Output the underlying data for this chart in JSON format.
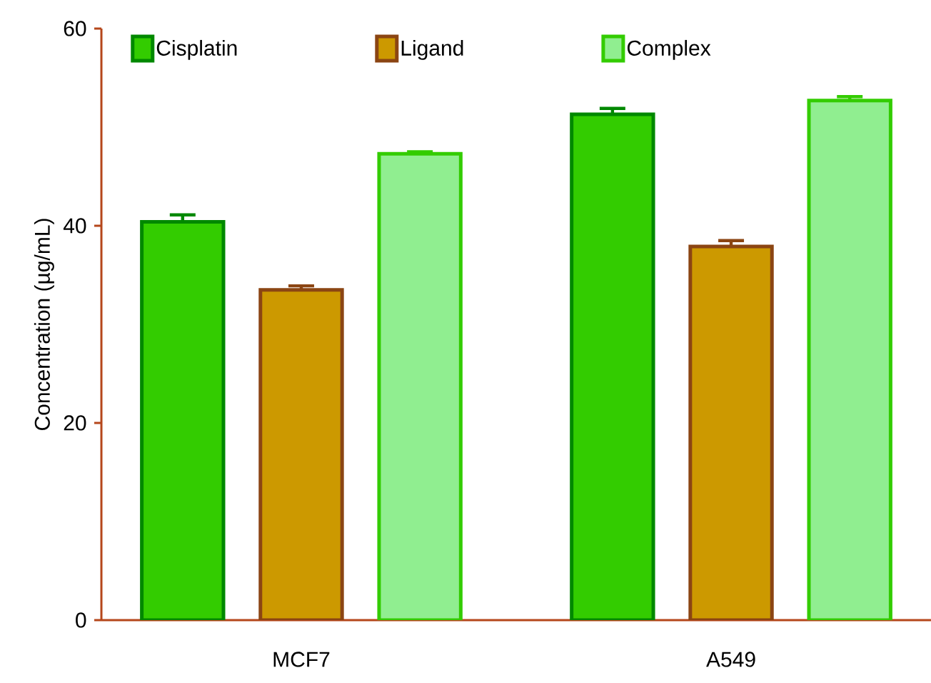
{
  "chart_data": {
    "type": "bar",
    "ylabel": "Concentration (µg/mL)",
    "categories": [
      "MCF7",
      "A549"
    ],
    "series": [
      {
        "name": "Cisplatin",
        "color": "#33cc00",
        "values": [
          40.4,
          51.3
        ],
        "errors": [
          0.7,
          0.6
        ]
      },
      {
        "name": "Ligand",
        "color": "#cc9900",
        "values": [
          33.5,
          37.9
        ],
        "errors": [
          0.4,
          0.6
        ]
      },
      {
        "name": "Complex",
        "color": "#90ee90",
        "values": [
          47.3,
          52.7
        ],
        "errors": [
          0.2,
          0.4
        ]
      }
    ],
    "ylim": [
      0,
      60
    ],
    "yticks": [
      0,
      20,
      40,
      60
    ],
    "legend": "top"
  }
}
